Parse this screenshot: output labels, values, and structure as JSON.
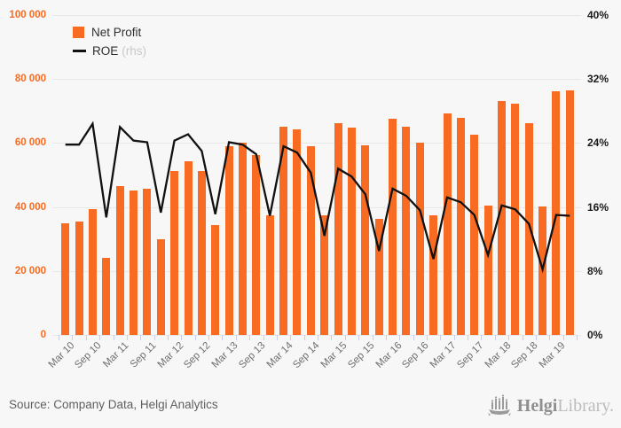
{
  "legend": {
    "net_profit": {
      "label": "Net Profit"
    },
    "roe": {
      "label": "ROE",
      "suffix": "(rhs)"
    }
  },
  "footer": {
    "source": "Source: Company Data, Helgi Analytics",
    "logo_helgi": "Helgi",
    "logo_library": "Library."
  },
  "colors": {
    "bar": "#f76c22",
    "line": "#111111",
    "left_axis_text": "#f76c22",
    "right_axis_text": "#1a1a1a",
    "grid": "#e8e8e8",
    "xtick": "#c9cfe6",
    "xlabel_text": "#6f6f6f"
  },
  "chart_data": {
    "type": "bar",
    "title": "",
    "categories": [
      "Mar 10",
      "Jun 10",
      "Sep 10",
      "Dec 10",
      "Mar 11",
      "Jun 11",
      "Sep 11",
      "Dec 11",
      "Mar 12",
      "Jun 12",
      "Sep 12",
      "Dec 12",
      "Mar 13",
      "Jun 13",
      "Sep 13",
      "Dec 13",
      "Mar 14",
      "Jun 14",
      "Sep 14",
      "Dec 14",
      "Mar 15",
      "Jun 15",
      "Sep 15",
      "Dec 15",
      "Mar 16",
      "Jun 16",
      "Sep 16",
      "Dec 16",
      "Mar 17",
      "Jun 17",
      "Sep 17",
      "Dec 17",
      "Mar 18",
      "Jun 18",
      "Sep 18",
      "Dec 18",
      "Mar 19",
      "Jun 19"
    ],
    "x_label_every": 2,
    "series": [
      {
        "name": "Net Profit",
        "type": "bar",
        "axis": "left",
        "values": [
          35000,
          35400,
          39400,
          24100,
          46600,
          45200,
          45700,
          29900,
          51200,
          54200,
          51300,
          34500,
          58900,
          60000,
          56300,
          37400,
          65100,
          64300,
          59000,
          37300,
          66200,
          64700,
          59300,
          36300,
          67600,
          65000,
          60000,
          37300,
          69200,
          67800,
          62500,
          40500,
          73200,
          72300,
          66300,
          40200,
          76300,
          76600
        ]
      },
      {
        "name": "ROE (rhs)",
        "type": "line",
        "axis": "right",
        "values": [
          23.8,
          23.8,
          26.4,
          14.7,
          26.0,
          24.3,
          24.1,
          15.3,
          24.3,
          25.1,
          23.0,
          15.1,
          24.1,
          23.8,
          22.6,
          14.9,
          23.6,
          22.8,
          20.3,
          12.4,
          20.8,
          19.8,
          17.6,
          10.5,
          18.3,
          17.4,
          15.6,
          9.5,
          17.2,
          16.6,
          15.0,
          10.0,
          16.2,
          15.7,
          13.9,
          8.2,
          15.0,
          14.9
        ]
      }
    ],
    "left_axis": {
      "min": 0,
      "max": 100000,
      "tick_step": 20000,
      "tick_labels": [
        "0",
        "20 000",
        "40 000",
        "60 000",
        "80 000",
        "100 000"
      ]
    },
    "right_axis": {
      "min": 0,
      "max": 40,
      "tick_step": 8,
      "tick_labels": [
        "0%",
        "8%",
        "16%",
        "24%",
        "32%",
        "40%"
      ]
    },
    "grid": true,
    "legend_position": "top-left"
  }
}
